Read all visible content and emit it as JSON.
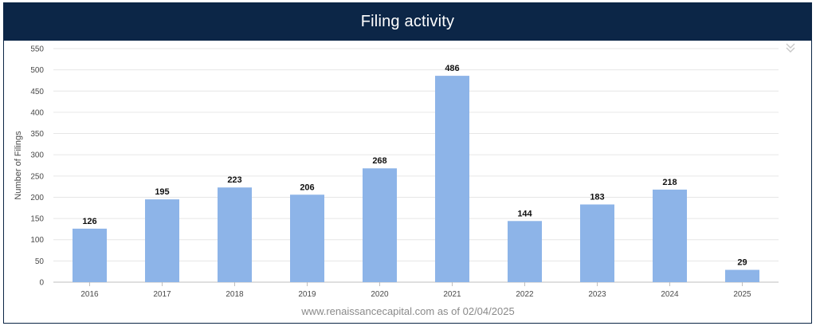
{
  "header": {
    "title": "Filing activity"
  },
  "footer": {
    "source_text": "www.renaissancecapital.com as of 02/04/2025"
  },
  "collapse_icon": "double-chevron-down-icon",
  "colors": {
    "header_bg": "#0c2647",
    "bar": "#8db4e8",
    "grid": "#e6e6e6"
  },
  "chart_data": {
    "type": "bar",
    "title": "Filing activity",
    "xlabel": "",
    "ylabel": "Number of Filings",
    "categories": [
      "2016",
      "2017",
      "2018",
      "2019",
      "2020",
      "2021",
      "2022",
      "2023",
      "2024",
      "2025"
    ],
    "values": [
      126,
      195,
      223,
      206,
      268,
      486,
      144,
      183,
      218,
      29
    ],
    "ylim": [
      0,
      550
    ],
    "yticks": [
      0,
      50,
      100,
      150,
      200,
      250,
      300,
      350,
      400,
      450,
      500,
      550
    ],
    "grid": true,
    "legend": "none",
    "data_labels": true
  }
}
